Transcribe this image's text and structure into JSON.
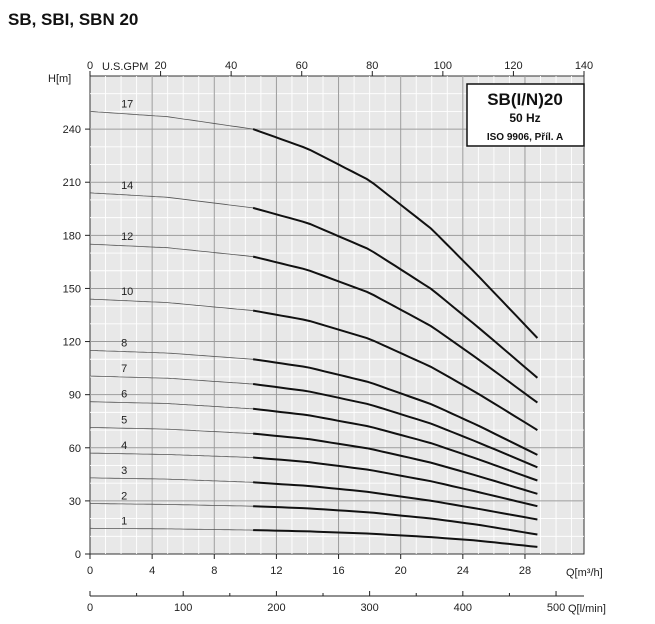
{
  "page": {
    "title": "SB, SBI, SBN 20"
  },
  "chart_data": {
    "type": "line",
    "title": "",
    "legend_box": {
      "title": "SB(I/N)20",
      "frequency": "50 Hz",
      "standard": "ISO 9906, Příl. A",
      "placement": "top-right"
    },
    "grid": true,
    "y_axis": {
      "label": "H[m]",
      "ylim": [
        0,
        270
      ],
      "ticks": [
        0,
        30,
        60,
        90,
        120,
        150,
        180,
        210,
        240
      ]
    },
    "x_axis_top": {
      "label": "U.S.GPM",
      "xlim": [
        0,
        140
      ],
      "ticks": [
        0,
        20,
        40,
        60,
        80,
        100,
        120,
        140
      ]
    },
    "x_axis_main": {
      "label": "Q[m³/h]",
      "xlim": [
        0,
        31.8
      ],
      "ticks": [
        0,
        4,
        8,
        12,
        16,
        20,
        24,
        28
      ]
    },
    "x_axis_bottom": {
      "label": "Q[l/min]",
      "xlim": [
        0,
        530
      ],
      "ticks": [
        0,
        100,
        200,
        300,
        400,
        500
      ]
    },
    "operating_range_start": 10.5,
    "series": [
      {
        "name": "1",
        "x": [
          0,
          5,
          10.5,
          14,
          18,
          22,
          25,
          28.8
        ],
        "y": [
          14.5,
          14.2,
          13.5,
          12.8,
          11.5,
          9.5,
          7.5,
          4
        ]
      },
      {
        "name": "2",
        "x": [
          0,
          5,
          10.5,
          14,
          18,
          22,
          25,
          28.8
        ],
        "y": [
          28.5,
          28,
          27,
          25.8,
          23.5,
          20,
          16.5,
          11
        ]
      },
      {
        "name": "3",
        "x": [
          0,
          5,
          10.5,
          14,
          18,
          22,
          25,
          28.8
        ],
        "y": [
          43,
          42.3,
          40.5,
          38.5,
          35,
          30,
          25.5,
          19.5
        ]
      },
      {
        "name": "4",
        "x": [
          0,
          5,
          10.5,
          14,
          18,
          22,
          25,
          28.8
        ],
        "y": [
          57,
          56.2,
          54.5,
          52,
          47.5,
          41,
          35,
          27
        ]
      },
      {
        "name": "5",
        "x": [
          0,
          5,
          10.5,
          14,
          18,
          22,
          25,
          28.8
        ],
        "y": [
          71.5,
          70.5,
          68,
          65,
          59.5,
          51.5,
          44,
          34
        ]
      },
      {
        "name": "6",
        "x": [
          0,
          5,
          10.5,
          14,
          18,
          22,
          25,
          28.8
        ],
        "y": [
          86,
          85,
          82,
          78.5,
          72,
          62.5,
          53.5,
          41.5
        ]
      },
      {
        "name": "7",
        "x": [
          0,
          5,
          10.5,
          14,
          18,
          22,
          25,
          28.8
        ],
        "y": [
          100.5,
          99.3,
          96,
          92,
          84.5,
          73.5,
          63,
          49
        ]
      },
      {
        "name": "8",
        "x": [
          0,
          5,
          10.5,
          14,
          18,
          22,
          25,
          28.8
        ],
        "y": [
          115,
          113.5,
          110,
          105.5,
          97,
          84.5,
          72.5,
          56
        ]
      },
      {
        "name": "10",
        "x": [
          0,
          5,
          10.5,
          14,
          18,
          22,
          25,
          28.8
        ],
        "y": [
          144,
          142,
          137.5,
          132,
          121.5,
          105.5,
          90.5,
          70
        ]
      },
      {
        "name": "12",
        "x": [
          0,
          5,
          10.5,
          14,
          18,
          22,
          25,
          28.8
        ],
        "y": [
          175,
          173,
          168,
          160.5,
          147.5,
          128.5,
          110,
          85.5
        ]
      },
      {
        "name": "14",
        "x": [
          0,
          5,
          10.5,
          14,
          18,
          22,
          25,
          28.8
        ],
        "y": [
          204,
          201.5,
          195.5,
          187,
          172,
          149.5,
          128,
          99.5
        ]
      },
      {
        "name": "17",
        "x": [
          0,
          5,
          10.5,
          14,
          18,
          22,
          25,
          28.8
        ],
        "y": [
          250,
          247,
          240,
          229,
          211,
          183.5,
          157,
          122
        ]
      }
    ]
  }
}
